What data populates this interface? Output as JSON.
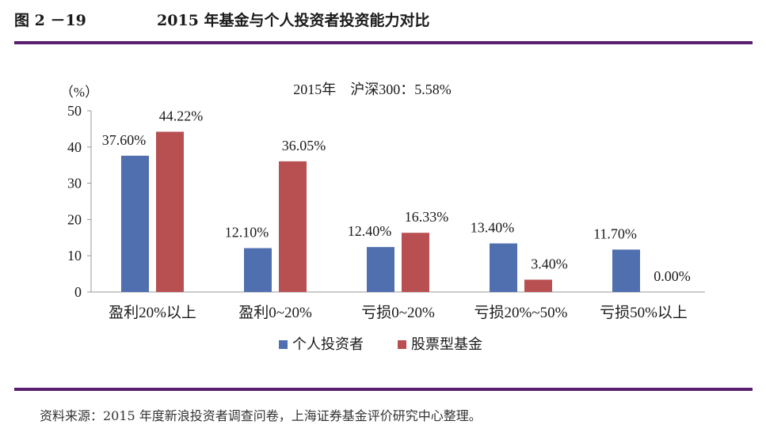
{
  "figure": {
    "number": "图 2 －19",
    "title": "2015 年基金与个人投资者投资能力对比",
    "source": "资料来源：2015 年度新浪投资者调查问卷，上海证券基金评价研究中心整理。"
  },
  "chart_data": {
    "type": "bar",
    "title": "2015年　沪深300：5.58%",
    "ylabel": "（%）",
    "xlabel": "",
    "ylim": [
      0,
      50
    ],
    "yticks": [
      0,
      10,
      20,
      30,
      40,
      50
    ],
    "categories": [
      "盈利20%以上",
      "盈利0~20%",
      "亏损0~20%",
      "亏损20%~50%",
      "亏损50%以上"
    ],
    "series": [
      {
        "name": "个人投资者",
        "color": "#4f6fae",
        "values": [
          37.6,
          12.1,
          12.4,
          13.4,
          11.7
        ],
        "labels": [
          "37.60%",
          "12.10%",
          "12.40%",
          "13.40%",
          "11.70%"
        ]
      },
      {
        "name": "股票型基金",
        "color": "#b85052",
        "values": [
          44.22,
          36.05,
          16.33,
          3.4,
          0.0
        ],
        "labels": [
          "44.22%",
          "36.05%",
          "16.33%",
          "3.40%",
          "0.00%"
        ]
      }
    ],
    "grid": false,
    "legend_position": "bottom"
  }
}
